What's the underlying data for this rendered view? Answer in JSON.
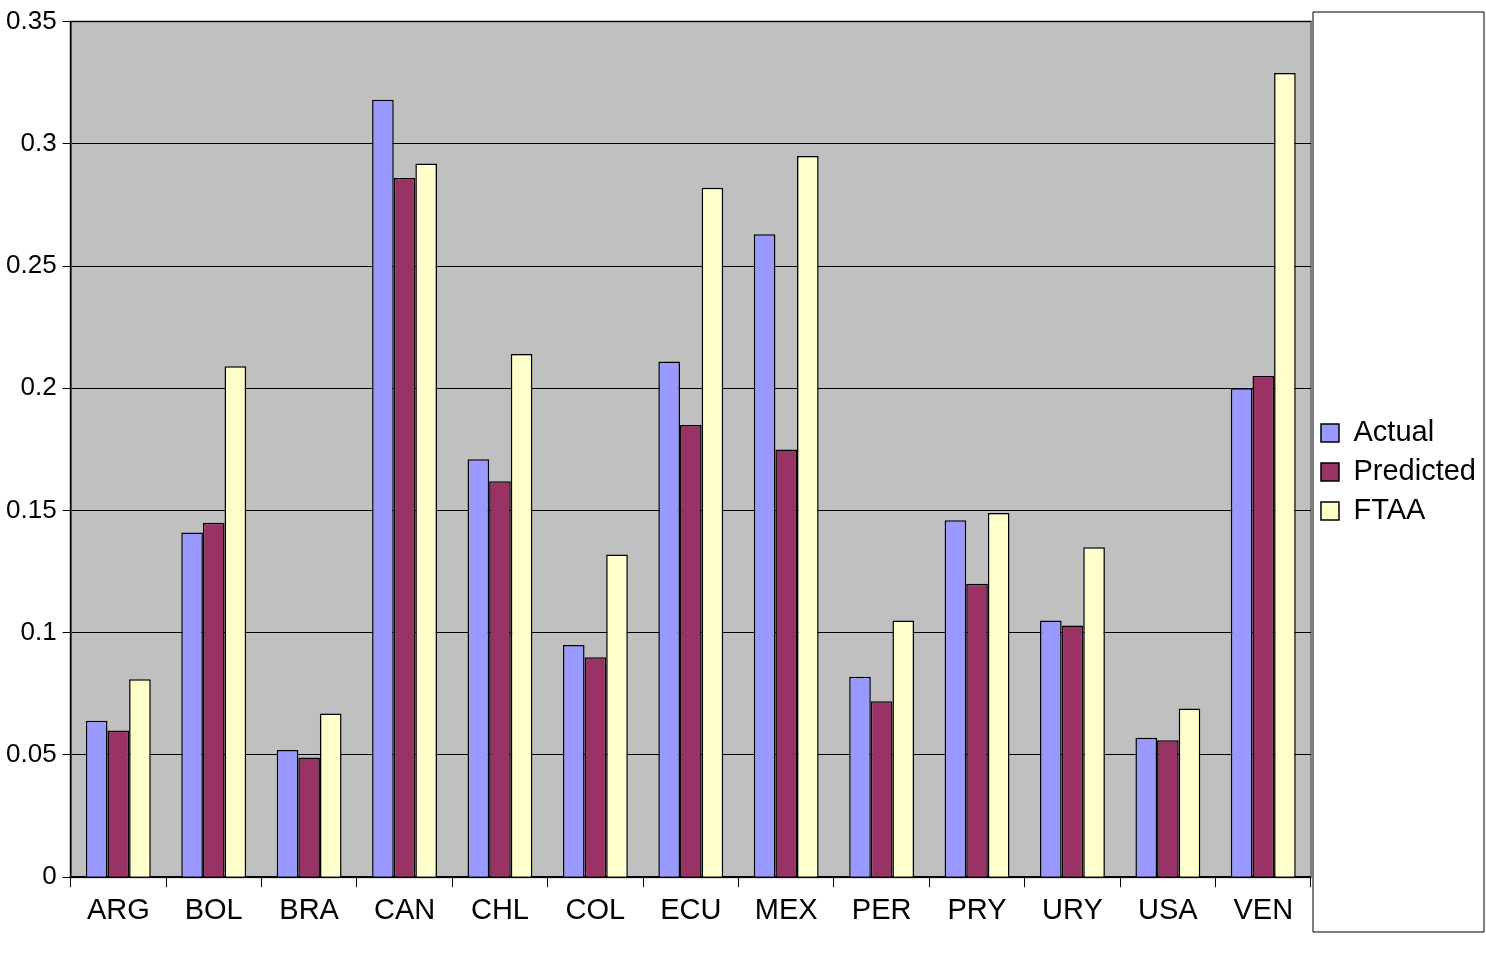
{
  "chart_data": {
    "type": "bar",
    "categories": [
      "ARG",
      "BOL",
      "BRA",
      "CAN",
      "CHL",
      "COL",
      "ECU",
      "MEX",
      "PER",
      "PRY",
      "URY",
      "USA",
      "VEN"
    ],
    "series": [
      {
        "name": "Actual",
        "color": "#9999ff",
        "values": [
          0.064,
          0.141,
          0.052,
          0.318,
          0.171,
          0.095,
          0.211,
          0.263,
          0.082,
          0.146,
          0.105,
          0.057,
          0.2
        ]
      },
      {
        "name": "Predicted",
        "color": "#993366",
        "values": [
          0.06,
          0.145,
          0.049,
          0.286,
          0.162,
          0.09,
          0.185,
          0.175,
          0.072,
          0.12,
          0.103,
          0.056,
          0.205
        ]
      },
      {
        "name": "FTAA",
        "color": "#ffffcc",
        "values": [
          0.081,
          0.209,
          0.067,
          0.292,
          0.214,
          0.132,
          0.282,
          0.295,
          0.105,
          0.149,
          0.135,
          0.069,
          0.329
        ]
      }
    ],
    "ylim": [
      0,
      0.35
    ],
    "yticks": [
      0,
      0.05,
      0.1,
      0.15,
      0.2,
      0.25,
      0.3,
      0.35
    ],
    "grid": "y",
    "legend": "right"
  }
}
